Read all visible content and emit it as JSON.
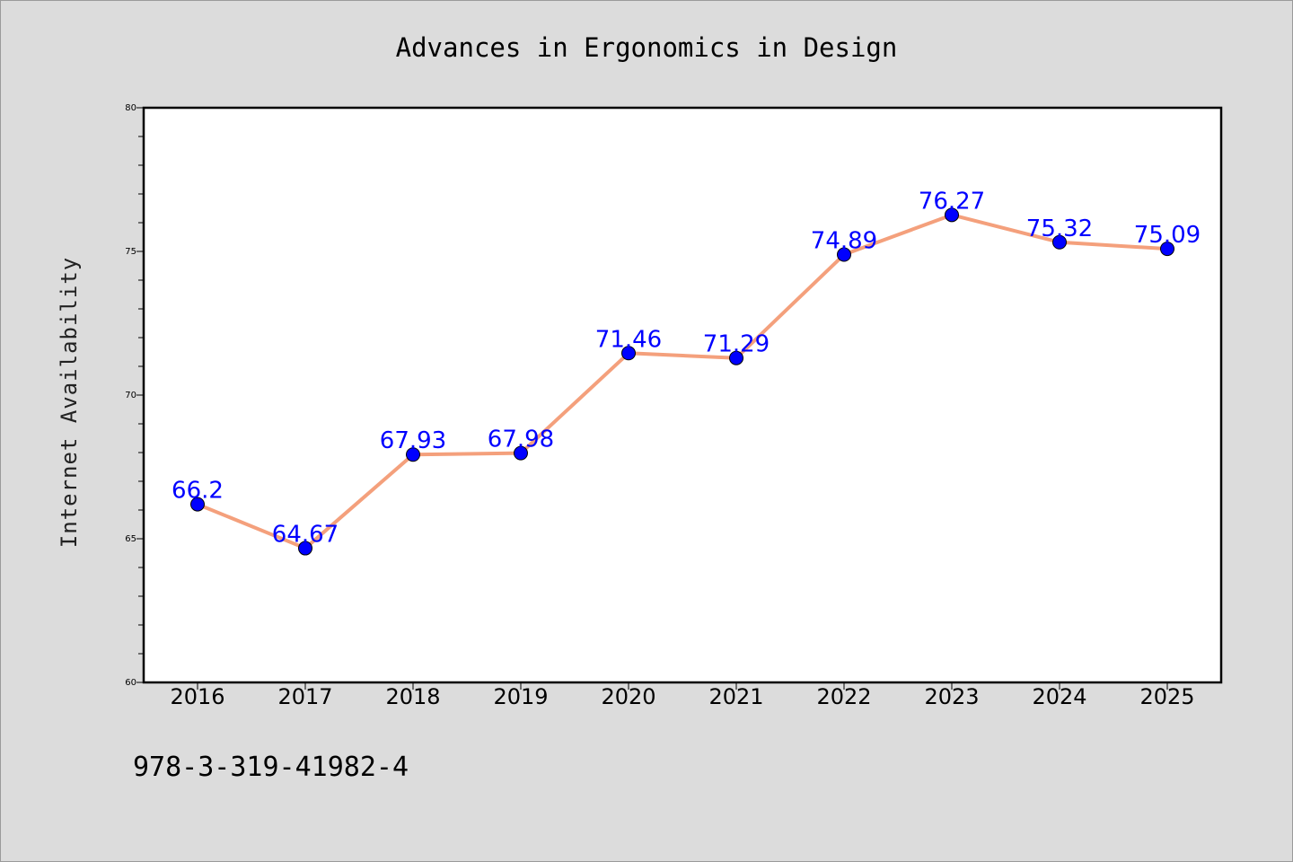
{
  "chart_data": {
    "type": "line",
    "title": "Advances in Ergonomics in Design",
    "xlabel": "",
    "ylabel": "Internet Availability",
    "categories": [
      "2016",
      "2017",
      "2018",
      "2019",
      "2020",
      "2021",
      "2022",
      "2023",
      "2024",
      "2025"
    ],
    "series": [
      {
        "values": [
          66.2,
          64.67,
          67.93,
          67.98,
          71.46,
          71.29,
          74.89,
          76.27,
          75.32,
          75.09
        ],
        "line_color": "#f4a07c",
        "marker_color": "#0000ff"
      }
    ],
    "data_labels": [
      "66.2",
      "64.67",
      "67.93",
      "67.98",
      "71.46",
      "71.29",
      "74.89",
      "76.27",
      "75.32",
      "75.09"
    ],
    "ylim": [
      60,
      80
    ],
    "yticks": [
      "60",
      "65",
      "70",
      "75",
      "80"
    ],
    "grid": false,
    "legend": "none"
  },
  "footer": {
    "isbn": "978-3-319-41982-4"
  }
}
